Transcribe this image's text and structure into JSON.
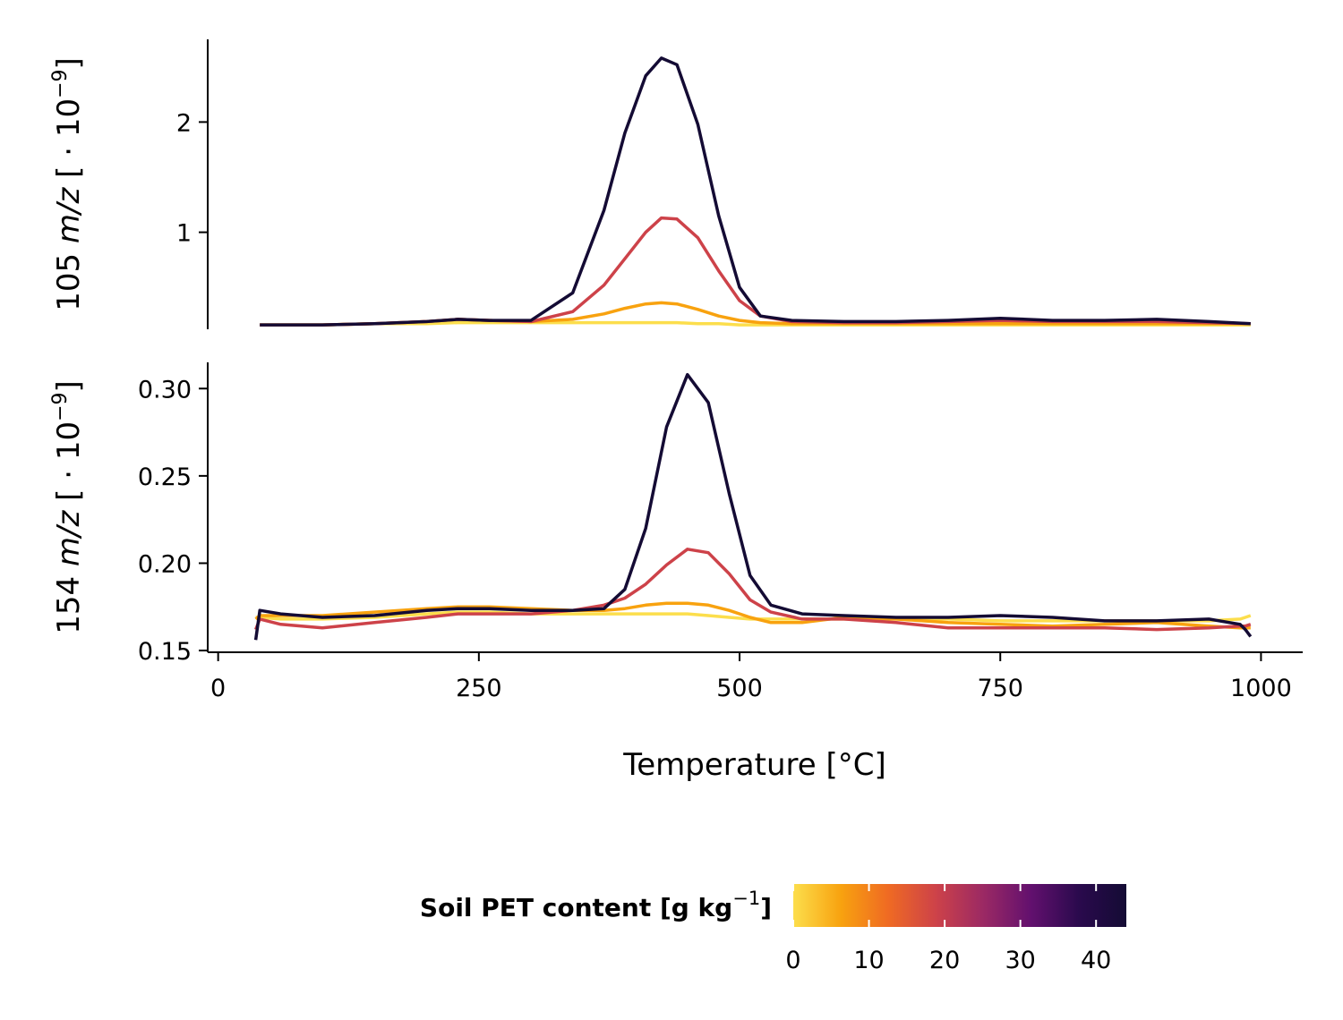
{
  "chart_data": [
    {
      "type": "line",
      "panel": "top",
      "ylabel_main": "105 ",
      "ylabel_italic": "m/z",
      "ylabel_tail": " [ · 10",
      "ylabel_exp": "−9",
      "ylabel_close": "]",
      "ylim": [
        0.12,
        2.75
      ],
      "yticks": [
        "1",
        "2"
      ],
      "ytick_values": [
        1,
        2
      ],
      "x": [
        40,
        100,
        150,
        200,
        230,
        260,
        300,
        340,
        370,
        390,
        410,
        425,
        440,
        460,
        480,
        500,
        520,
        550,
        600,
        650,
        700,
        750,
        800,
        850,
        900,
        950,
        990
      ],
      "series": [
        {
          "color": "#fcde4c",
          "values": [
            0.16,
            0.16,
            0.17,
            0.17,
            0.18,
            0.18,
            0.18,
            0.18,
            0.18,
            0.18,
            0.18,
            0.18,
            0.18,
            0.17,
            0.17,
            0.16,
            0.16,
            0.16,
            0.16,
            0.16,
            0.16,
            0.16,
            0.16,
            0.16,
            0.16,
            0.16,
            0.16
          ]
        },
        {
          "color": "#f8a20f",
          "values": [
            0.16,
            0.16,
            0.17,
            0.19,
            0.21,
            0.2,
            0.19,
            0.21,
            0.26,
            0.31,
            0.35,
            0.36,
            0.35,
            0.3,
            0.24,
            0.2,
            0.18,
            0.17,
            0.17,
            0.17,
            0.17,
            0.17,
            0.17,
            0.17,
            0.17,
            0.17,
            0.17
          ]
        },
        {
          "color": "#cd4249",
          "values": [
            0.16,
            0.16,
            0.17,
            0.19,
            0.21,
            0.2,
            0.19,
            0.28,
            0.52,
            0.76,
            1.0,
            1.13,
            1.12,
            0.95,
            0.65,
            0.38,
            0.24,
            0.19,
            0.18,
            0.18,
            0.19,
            0.2,
            0.19,
            0.19,
            0.19,
            0.18,
            0.17
          ]
        },
        {
          "color": "#140b34",
          "values": [
            0.16,
            0.16,
            0.17,
            0.19,
            0.21,
            0.2,
            0.2,
            0.45,
            1.2,
            1.9,
            2.42,
            2.58,
            2.52,
            1.98,
            1.15,
            0.5,
            0.24,
            0.2,
            0.19,
            0.19,
            0.2,
            0.22,
            0.2,
            0.2,
            0.21,
            0.19,
            0.17
          ]
        }
      ]
    },
    {
      "type": "line",
      "panel": "bottom",
      "ylabel_main": "154 ",
      "ylabel_italic": "m/z",
      "ylabel_tail": " [ · 10",
      "ylabel_exp": "−9",
      "ylabel_close": "]",
      "xlabel": "Temperature [°C]",
      "xlim": [
        -10,
        1040
      ],
      "xticks": [
        "0",
        "250",
        "500",
        "750",
        "1000"
      ],
      "xtick_values": [
        0,
        250,
        500,
        750,
        1000
      ],
      "ylim": [
        0.149,
        0.315
      ],
      "yticks": [
        "0.15",
        "0.20",
        "0.25",
        "0.30"
      ],
      "ytick_values": [
        0.15,
        0.2,
        0.25,
        0.3
      ],
      "x": [
        36,
        40,
        60,
        100,
        150,
        200,
        230,
        260,
        300,
        340,
        370,
        390,
        410,
        430,
        450,
        470,
        490,
        510,
        530,
        560,
        600,
        650,
        700,
        750,
        800,
        850,
        900,
        950,
        980,
        985,
        990
      ],
      "series": [
        {
          "color": "#fcde4c",
          "values": [
            0.169,
            0.169,
            0.168,
            0.168,
            0.169,
            0.171,
            0.172,
            0.172,
            0.171,
            0.171,
            0.171,
            0.171,
            0.171,
            0.171,
            0.171,
            0.17,
            0.169,
            0.168,
            0.168,
            0.168,
            0.168,
            0.168,
            0.168,
            0.167,
            0.167,
            0.167,
            0.167,
            0.167,
            0.168,
            0.169,
            0.17
          ]
        },
        {
          "color": "#f8a20f",
          "values": [
            0.168,
            0.17,
            0.17,
            0.17,
            0.172,
            0.174,
            0.175,
            0.175,
            0.174,
            0.173,
            0.173,
            0.174,
            0.176,
            0.177,
            0.177,
            0.176,
            0.173,
            0.169,
            0.166,
            0.166,
            0.169,
            0.168,
            0.166,
            0.165,
            0.164,
            0.165,
            0.166,
            0.164,
            0.163,
            0.163,
            0.163
          ]
        },
        {
          "color": "#cd4249",
          "values": [
            0.162,
            0.168,
            0.165,
            0.163,
            0.166,
            0.169,
            0.171,
            0.171,
            0.171,
            0.173,
            0.176,
            0.18,
            0.188,
            0.199,
            0.208,
            0.206,
            0.194,
            0.179,
            0.172,
            0.168,
            0.168,
            0.166,
            0.163,
            0.163,
            0.163,
            0.163,
            0.162,
            0.163,
            0.164,
            0.164,
            0.165
          ]
        },
        {
          "color": "#140b34",
          "values": [
            0.156,
            0.173,
            0.171,
            0.169,
            0.17,
            0.173,
            0.174,
            0.174,
            0.173,
            0.173,
            0.174,
            0.185,
            0.22,
            0.278,
            0.308,
            0.292,
            0.24,
            0.193,
            0.176,
            0.171,
            0.17,
            0.169,
            0.169,
            0.17,
            0.169,
            0.167,
            0.167,
            0.168,
            0.165,
            0.162,
            0.158
          ]
        }
      ]
    }
  ],
  "legend": {
    "title_main": "Soil PET content [g kg",
    "title_exp": "−1",
    "title_close": "]",
    "min": 0,
    "max": 44,
    "ticks": [
      "0",
      "10",
      "20",
      "30",
      "40"
    ],
    "tick_values": [
      0,
      10,
      20,
      30,
      40
    ],
    "gradient_colors": [
      "#fcde4c",
      "#f8a20f",
      "#ef6a23",
      "#cd4249",
      "#9b2964",
      "#62106e",
      "#2a0a4d",
      "#140b34"
    ],
    "placement": "bottom"
  }
}
